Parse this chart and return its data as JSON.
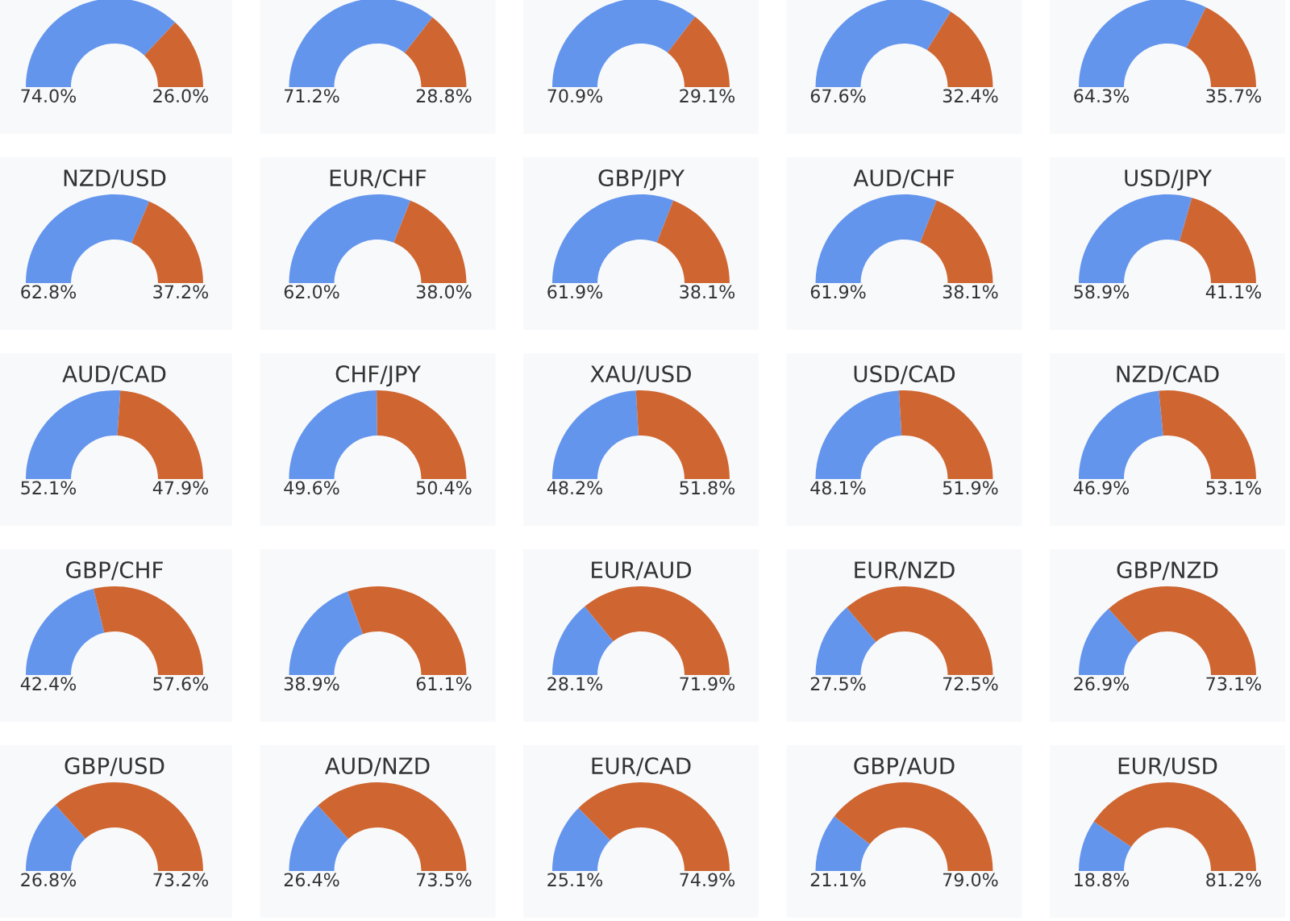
{
  "chart_data": [
    {
      "type": "donut",
      "categories": [
        null,
        null
      ],
      "values": [
        74.0,
        26.0
      ],
      "colors": [
        "#6495ed",
        "#cf6631"
      ],
      "value_labels": [
        "74.0%",
        "26.0%"
      ]
    },
    {
      "type": "donut",
      "categories": [
        null,
        null
      ],
      "values": [
        71.2,
        28.8
      ],
      "colors": [
        "#6495ed",
        "#cf6631"
      ],
      "value_labels": [
        "71.2%",
        "28.8%"
      ]
    },
    {
      "type": "donut",
      "categories": [
        null,
        null
      ],
      "values": [
        70.9,
        29.1
      ],
      "colors": [
        "#6495ed",
        "#cf6631"
      ],
      "value_labels": [
        "70.9%",
        "29.1%"
      ]
    },
    {
      "type": "donut",
      "categories": [
        null,
        null
      ],
      "values": [
        67.6,
        32.4
      ],
      "colors": [
        "#6495ed",
        "#cf6631"
      ],
      "value_labels": [
        "67.6%",
        "32.4%"
      ]
    },
    {
      "type": "donut",
      "categories": [
        null,
        null
      ],
      "values": [
        64.3,
        35.7
      ],
      "colors": [
        "#6495ed",
        "#cf6631"
      ],
      "value_labels": [
        "64.3%",
        "35.7%"
      ]
    },
    {
      "type": "donut",
      "title": "NZD/USD",
      "categories": [
        null,
        null
      ],
      "values": [
        62.8,
        37.2
      ],
      "colors": [
        "#6495ed",
        "#cf6631"
      ],
      "value_labels": [
        "62.8%",
        "37.2%"
      ]
    },
    {
      "type": "donut",
      "title": "EUR/CHF",
      "categories": [
        null,
        null
      ],
      "values": [
        62.0,
        38.0
      ],
      "colors": [
        "#6495ed",
        "#cf6631"
      ],
      "value_labels": [
        "62.0%",
        "38.0%"
      ]
    },
    {
      "type": "donut",
      "title": "GBP/JPY",
      "categories": [
        null,
        null
      ],
      "values": [
        61.9,
        38.1
      ],
      "colors": [
        "#6495ed",
        "#cf6631"
      ],
      "value_labels": [
        "61.9%",
        "38.1%"
      ]
    },
    {
      "type": "donut",
      "title": "AUD/CHF",
      "categories": [
        null,
        null
      ],
      "values": [
        61.9,
        38.1
      ],
      "colors": [
        "#6495ed",
        "#cf6631"
      ],
      "value_labels": [
        "61.9%",
        "38.1%"
      ]
    },
    {
      "type": "donut",
      "title": "USD/JPY",
      "categories": [
        null,
        null
      ],
      "values": [
        58.9,
        41.1
      ],
      "colors": [
        "#6495ed",
        "#cf6631"
      ],
      "value_labels": [
        "58.9%",
        "41.1%"
      ]
    },
    {
      "type": "donut",
      "title": "AUD/CAD",
      "categories": [
        null,
        null
      ],
      "values": [
        52.1,
        47.9
      ],
      "colors": [
        "#6495ed",
        "#cf6631"
      ],
      "value_labels": [
        "52.1%",
        "47.9%"
      ]
    },
    {
      "type": "donut",
      "title": "CHF/JPY",
      "categories": [
        null,
        null
      ],
      "values": [
        49.6,
        50.4
      ],
      "colors": [
        "#6495ed",
        "#cf6631"
      ],
      "value_labels": [
        "49.6%",
        "50.4%"
      ]
    },
    {
      "type": "donut",
      "title": "XAU/USD",
      "categories": [
        null,
        null
      ],
      "values": [
        48.2,
        51.8
      ],
      "colors": [
        "#6495ed",
        "#cf6631"
      ],
      "value_labels": [
        "48.2%",
        "51.8%"
      ]
    },
    {
      "type": "donut",
      "title": "USD/CAD",
      "categories": [
        null,
        null
      ],
      "values": [
        48.1,
        51.9
      ],
      "colors": [
        "#6495ed",
        "#cf6631"
      ],
      "value_labels": [
        "48.1%",
        "51.9%"
      ]
    },
    {
      "type": "donut",
      "title": "NZD/CAD",
      "categories": [
        null,
        null
      ],
      "values": [
        46.9,
        53.1
      ],
      "colors": [
        "#6495ed",
        "#cf6631"
      ],
      "value_labels": [
        "46.9%",
        "53.1%"
      ]
    },
    {
      "type": "donut",
      "title": "GBP/CHF",
      "categories": [
        null,
        null
      ],
      "values": [
        42.4,
        57.6
      ],
      "colors": [
        "#6495ed",
        "#cf6631"
      ],
      "value_labels": [
        "42.4%",
        "57.6%"
      ]
    },
    {
      "type": "donut",
      "categories": [
        null,
        null
      ],
      "values": [
        38.9,
        61.1
      ],
      "colors": [
        "#6495ed",
        "#cf6631"
      ],
      "value_labels": [
        "38.9%",
        "61.1%"
      ]
    },
    {
      "type": "donut",
      "title": "EUR/AUD",
      "categories": [
        null,
        null
      ],
      "values": [
        28.1,
        71.9
      ],
      "colors": [
        "#6495ed",
        "#cf6631"
      ],
      "value_labels": [
        "28.1%",
        "71.9%"
      ]
    },
    {
      "type": "donut",
      "title": "EUR/NZD",
      "categories": [
        null,
        null
      ],
      "values": [
        27.5,
        72.5
      ],
      "colors": [
        "#6495ed",
        "#cf6631"
      ],
      "value_labels": [
        "27.5%",
        "72.5%"
      ]
    },
    {
      "type": "donut",
      "title": "GBP/NZD",
      "categories": [
        null,
        null
      ],
      "values": [
        26.9,
        73.1
      ],
      "colors": [
        "#6495ed",
        "#cf6631"
      ],
      "value_labels": [
        "26.9%",
        "73.1%"
      ]
    },
    {
      "type": "donut",
      "title": "GBP/USD",
      "categories": [
        null,
        null
      ],
      "values": [
        26.8,
        73.2
      ],
      "colors": [
        "#6495ed",
        "#cf6631"
      ],
      "value_labels": [
        "26.8%",
        "73.2%"
      ]
    },
    {
      "type": "donut",
      "title": "AUD/NZD",
      "categories": [
        null,
        null
      ],
      "values": [
        26.4,
        73.5
      ],
      "colors": [
        "#6495ed",
        "#cf6631"
      ],
      "value_labels": [
        "26.4%",
        "73.5%"
      ]
    },
    {
      "type": "donut",
      "title": "EUR/CAD",
      "categories": [
        null,
        null
      ],
      "values": [
        25.1,
        74.9
      ],
      "colors": [
        "#6495ed",
        "#cf6631"
      ],
      "value_labels": [
        "25.1%",
        "74.9%"
      ]
    },
    {
      "type": "donut",
      "title": "GBP/AUD",
      "categories": [
        null,
        null
      ],
      "values": [
        21.1,
        79.0
      ],
      "colors": [
        "#6495ed",
        "#cf6631"
      ],
      "value_labels": [
        "21.1%",
        "79.0%"
      ]
    },
    {
      "type": "donut",
      "title": "EUR/USD",
      "categories": [
        null,
        null
      ],
      "values": [
        18.8,
        81.2
      ],
      "colors": [
        "#6495ed",
        "#cf6631"
      ],
      "value_labels": [
        "18.8%",
        "81.2%"
      ]
    }
  ]
}
